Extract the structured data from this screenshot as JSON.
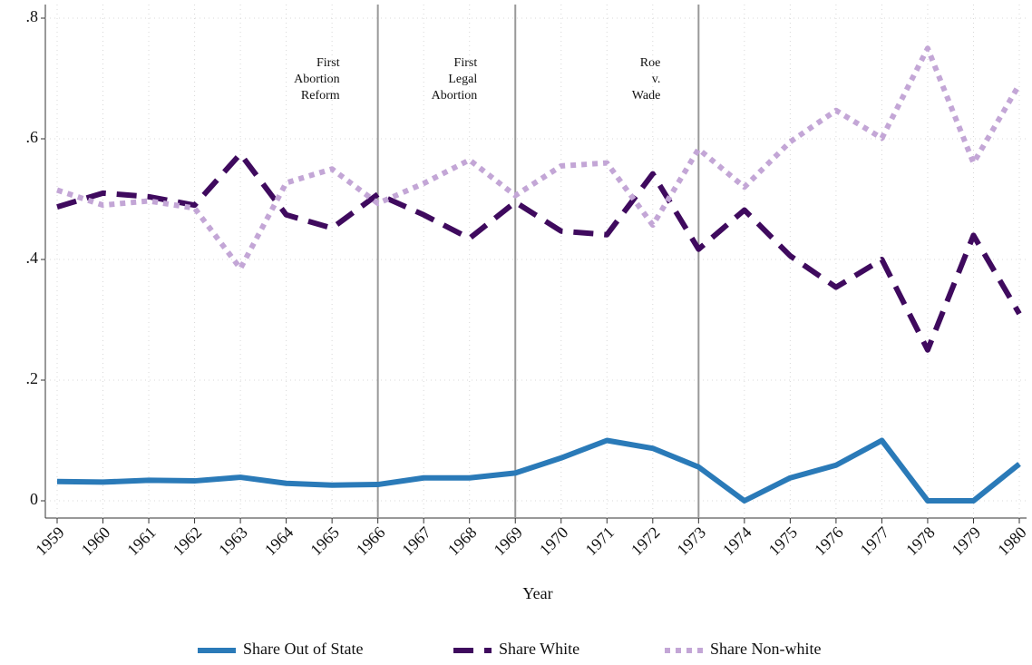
{
  "chart_data": {
    "type": "line",
    "xlabel": "Year",
    "x": [
      1959,
      1960,
      1961,
      1962,
      1963,
      1964,
      1965,
      1966,
      1967,
      1968,
      1969,
      1970,
      1971,
      1972,
      1973,
      1974,
      1975,
      1976,
      1977,
      1978,
      1979,
      1980
    ],
    "xlim": [
      1959,
      1980
    ],
    "xticks": [
      1959,
      1960,
      1961,
      1962,
      1963,
      1964,
      1965,
      1966,
      1967,
      1968,
      1969,
      1970,
      1971,
      1972,
      1973,
      1974,
      1975,
      1976,
      1977,
      1978,
      1979,
      1980
    ],
    "ylim": [
      0,
      0.8
    ],
    "yticks": [
      0,
      {
        "value": 0.2,
        "label": ".2"
      },
      {
        "value": 0.4,
        "label": ".4"
      },
      {
        "value": 0.6,
        "label": ".6"
      },
      {
        "value": 0.8,
        "label": ".8"
      }
    ],
    "grid": true,
    "legend": "bottom",
    "series": [
      {
        "name": "Share Out of State",
        "color": "#2a7ab8",
        "dash": "solid",
        "values": [
          0.032,
          0.031,
          0.034,
          0.033,
          0.039,
          0.029,
          0.026,
          0.027,
          0.038,
          0.038,
          0.046,
          0.071,
          0.1,
          0.087,
          0.056,
          0,
          0.038,
          0.059,
          0.1,
          0,
          0,
          0.061
        ]
      },
      {
        "name": "Share White",
        "color": "#3f0a5e",
        "dash": "dashed",
        "values": [
          0.487,
          0.51,
          0.504,
          0.49,
          0.575,
          0.474,
          0.452,
          0.508,
          0.474,
          0.435,
          0.495,
          0.447,
          0.441,
          0.542,
          0.417,
          0.482,
          0.406,
          0.354,
          0.4,
          0.25,
          0.44,
          0.31
        ]
      },
      {
        "name": "Share Non-white",
        "color": "#c3a6d6",
        "dash": "dotted",
        "values": [
          0.515,
          0.49,
          0.497,
          0.485,
          0.385,
          0.527,
          0.55,
          0.493,
          0.526,
          0.565,
          0.506,
          0.555,
          0.56,
          0.457,
          0.583,
          0.52,
          0.595,
          0.647,
          0.601,
          0.75,
          0.56,
          0.69
        ]
      }
    ],
    "annotations": [
      {
        "x": 1966,
        "lines": [
          "First",
          "Abortion",
          "Reform"
        ]
      },
      {
        "x": 1969,
        "lines": [
          "First",
          "Legal",
          "Abortion"
        ]
      },
      {
        "x": 1973,
        "lines": [
          "Roe",
          "v.",
          "Wade"
        ]
      }
    ]
  }
}
